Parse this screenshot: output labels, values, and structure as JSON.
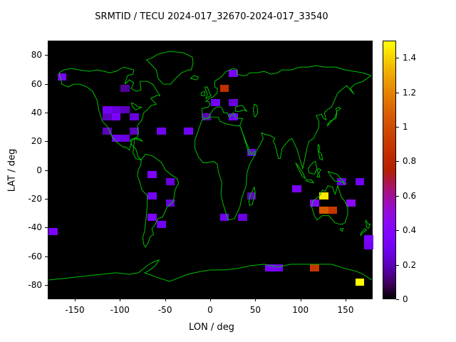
{
  "chart_data": {
    "type": "heatmap",
    "title": "SRMTID / TECU 2024-017_32670-2024-017_33540",
    "xlabel": "LON / deg",
    "ylabel": "LAT / deg",
    "xlim": [
      -180,
      180
    ],
    "ylim": [
      -90,
      90
    ],
    "x_ticks": [
      "-150",
      "-100",
      "-50",
      "0",
      "50",
      "100",
      "150"
    ],
    "y_ticks": [
      "-80",
      "-60",
      "-40",
      "-20",
      "0",
      "20",
      "40",
      "60",
      "80"
    ],
    "grid": false,
    "legend": "none",
    "background_color": "#000000",
    "coastline_color": "#00c000",
    "palette": "gnuplot-default-black-purple-orange-yellow",
    "colorbar": {
      "position": "right",
      "range": [
        0,
        1.5
      ],
      "ticks": [
        "0",
        "0.2",
        "0.4",
        "0.6",
        "0.8",
        "1",
        "1.2",
        "1.4"
      ]
    },
    "cell_size_deg": {
      "lon": 10,
      "lat": 5
    },
    "cells": [
      {
        "lon": -165,
        "lat": 65,
        "value": 0.35
      },
      {
        "lon": -95,
        "lat": 57.5,
        "value": 0.15
      },
      {
        "lon": -115,
        "lat": 42.5,
        "value": 0.3
      },
      {
        "lon": -105,
        "lat": 42.5,
        "value": 0.25
      },
      {
        "lon": -95,
        "lat": 42.5,
        "value": 0.2
      },
      {
        "lon": -115,
        "lat": 37.5,
        "value": 0.2
      },
      {
        "lon": -105,
        "lat": 37.5,
        "value": 0.35
      },
      {
        "lon": -85,
        "lat": 37.5,
        "value": 0.25
      },
      {
        "lon": -115,
        "lat": 27.5,
        "value": 0.2
      },
      {
        "lon": -105,
        "lat": 22.5,
        "value": 0.3
      },
      {
        "lon": -95,
        "lat": 22.5,
        "value": 0.25
      },
      {
        "lon": -85,
        "lat": 27.5,
        "value": 0.2
      },
      {
        "lon": -55,
        "lat": 27.5,
        "value": 0.3
      },
      {
        "lon": -25,
        "lat": 27.5,
        "value": 0.3
      },
      {
        "lon": 25,
        "lat": 67.5,
        "value": 0.35
      },
      {
        "lon": 15,
        "lat": 57.5,
        "value": 0.85
      },
      {
        "lon": 5,
        "lat": 47.5,
        "value": 0.3
      },
      {
        "lon": 25,
        "lat": 47.5,
        "value": 0.25
      },
      {
        "lon": 25,
        "lat": 37.5,
        "value": 0.3
      },
      {
        "lon": -5,
        "lat": 37.5,
        "value": 0.2
      },
      {
        "lon": 45,
        "lat": 12.5,
        "value": 0.25
      },
      {
        "lon": -65,
        "lat": -2.5,
        "value": 0.35
      },
      {
        "lon": -45,
        "lat": -7.5,
        "value": 0.25
      },
      {
        "lon": -65,
        "lat": -17.5,
        "value": 0.3
      },
      {
        "lon": -45,
        "lat": -22.5,
        "value": 0.25
      },
      {
        "lon": -65,
        "lat": -32.5,
        "value": 0.35
      },
      {
        "lon": -55,
        "lat": -37.5,
        "value": 0.3
      },
      {
        "lon": -175,
        "lat": -42.5,
        "value": 0.35
      },
      {
        "lon": 15,
        "lat": -32.5,
        "value": 0.3
      },
      {
        "lon": 35,
        "lat": -32.5,
        "value": 0.25
      },
      {
        "lon": 45,
        "lat": -17.5,
        "value": 0.2
      },
      {
        "lon": 95,
        "lat": -12.5,
        "value": 0.35
      },
      {
        "lon": 115,
        "lat": -22.5,
        "value": 0.4
      },
      {
        "lon": 125,
        "lat": -17.5,
        "value": 1.45
      },
      {
        "lon": 125,
        "lat": -27.5,
        "value": 1.05
      },
      {
        "lon": 135,
        "lat": -27.5,
        "value": 0.9
      },
      {
        "lon": 155,
        "lat": -22.5,
        "value": 0.45
      },
      {
        "lon": 145,
        "lat": -7.5,
        "value": 0.25
      },
      {
        "lon": 165,
        "lat": -7.5,
        "value": 0.3
      },
      {
        "lon": 175,
        "lat": -47.5,
        "value": 0.35
      },
      {
        "lon": 175,
        "lat": -52.5,
        "value": 0.3
      },
      {
        "lon": 65,
        "lat": -67.5,
        "value": 0.35
      },
      {
        "lon": 75,
        "lat": -67.5,
        "value": 0.3
      },
      {
        "lon": 115,
        "lat": -67.5,
        "value": 0.9
      },
      {
        "lon": 165,
        "lat": -77.5,
        "value": 1.5
      }
    ]
  }
}
